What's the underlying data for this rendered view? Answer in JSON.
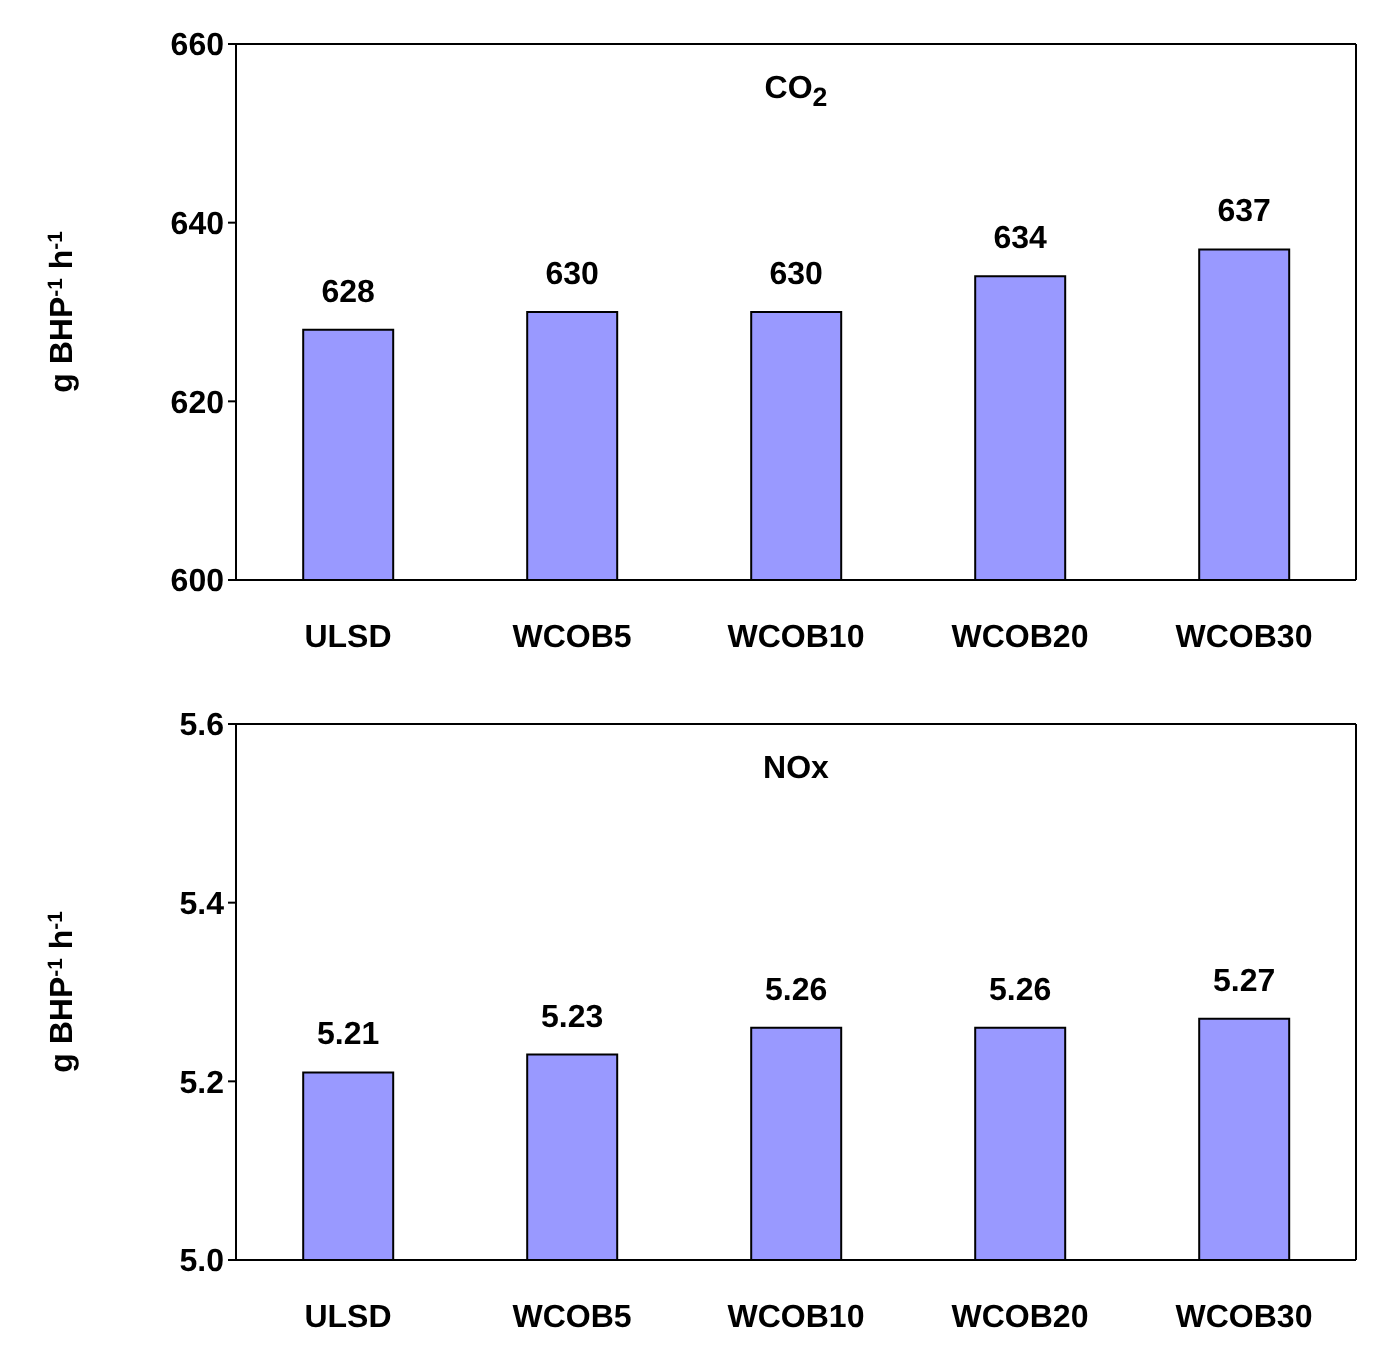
{
  "chart_data": [
    {
      "type": "bar",
      "title": "CO$_{2}$",
      "ylabel": "g BHP$^{-1}$ h$^{-1}$",
      "categories": [
        "ULSD",
        "WCOB5",
        "WCOB10",
        "WCOB20",
        "WCOB30"
      ],
      "values": [
        628,
        630,
        630,
        634,
        637
      ],
      "color": "#9999ff",
      "ylim": [
        600,
        660
      ],
      "yticks": [
        600,
        620,
        640,
        660
      ],
      "data_labels": true,
      "grid": false,
      "legend": false
    },
    {
      "type": "bar",
      "title": "NOx",
      "ylabel": "g BHP$^{-1}$ h$^{-1}$",
      "categories": [
        "ULSD",
        "WCOB5",
        "WCOB10",
        "WCOB20",
        "WCOB30"
      ],
      "values": [
        5.21,
        5.23,
        5.26,
        5.26,
        5.27
      ],
      "color": "#9999ff",
      "ylim": [
        5.0,
        5.6
      ],
      "yticks": [
        {
          "value": 5.0,
          "label": "5.0"
        },
        {
          "value": 5.2,
          "label": "5.2"
        },
        {
          "value": 5.4,
          "label": "5.4"
        },
        {
          "value": 5.6,
          "label": "5.6"
        }
      ],
      "data_labels": true,
      "grid": false,
      "legend": false
    }
  ]
}
